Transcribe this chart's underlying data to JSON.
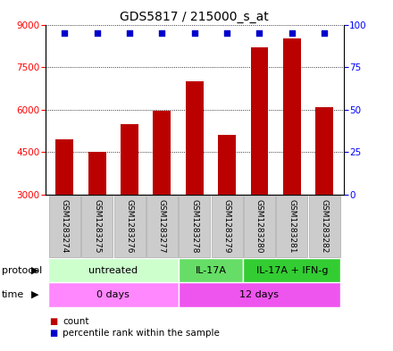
{
  "title": "GDS5817 / 215000_s_at",
  "samples": [
    "GSM1283274",
    "GSM1283275",
    "GSM1283276",
    "GSM1283277",
    "GSM1283278",
    "GSM1283279",
    "GSM1283280",
    "GSM1283281",
    "GSM1283282"
  ],
  "counts": [
    4950,
    4500,
    5500,
    5950,
    7000,
    5100,
    8200,
    8500,
    6100
  ],
  "percentile_ranks": [
    98,
    98,
    98,
    98,
    98,
    98,
    98,
    98,
    98
  ],
  "ylim_left": [
    3000,
    9000
  ],
  "ylim_right": [
    0,
    100
  ],
  "yticks_left": [
    3000,
    4500,
    6000,
    7500,
    9000
  ],
  "yticks_right": [
    0,
    25,
    50,
    75,
    100
  ],
  "bar_color": "#bb0000",
  "dot_color": "#0000cc",
  "bar_bottom": 3000,
  "protocol_groups": [
    {
      "label": "untreated",
      "start": 0,
      "end": 4,
      "color": "#ccffcc"
    },
    {
      "label": "IL-17A",
      "start": 4,
      "end": 6,
      "color": "#66dd66"
    },
    {
      "label": "IL-17A + IFN-g",
      "start": 6,
      "end": 9,
      "color": "#33cc33"
    }
  ],
  "time_groups": [
    {
      "label": "0 days",
      "start": 0,
      "end": 4,
      "color": "#ff88ff"
    },
    {
      "label": "12 days",
      "start": 4,
      "end": 9,
      "color": "#ee55ee"
    }
  ],
  "sample_box_color": "#cccccc",
  "sample_box_edge": "#aaaaaa",
  "legend_count_color": "#bb0000",
  "legend_pct_color": "#0000cc",
  "grid_color": "#000000",
  "title_fontsize": 10,
  "tick_fontsize": 7.5,
  "sample_fontsize": 6.5,
  "row_fontsize": 8,
  "legend_fontsize": 7.5
}
